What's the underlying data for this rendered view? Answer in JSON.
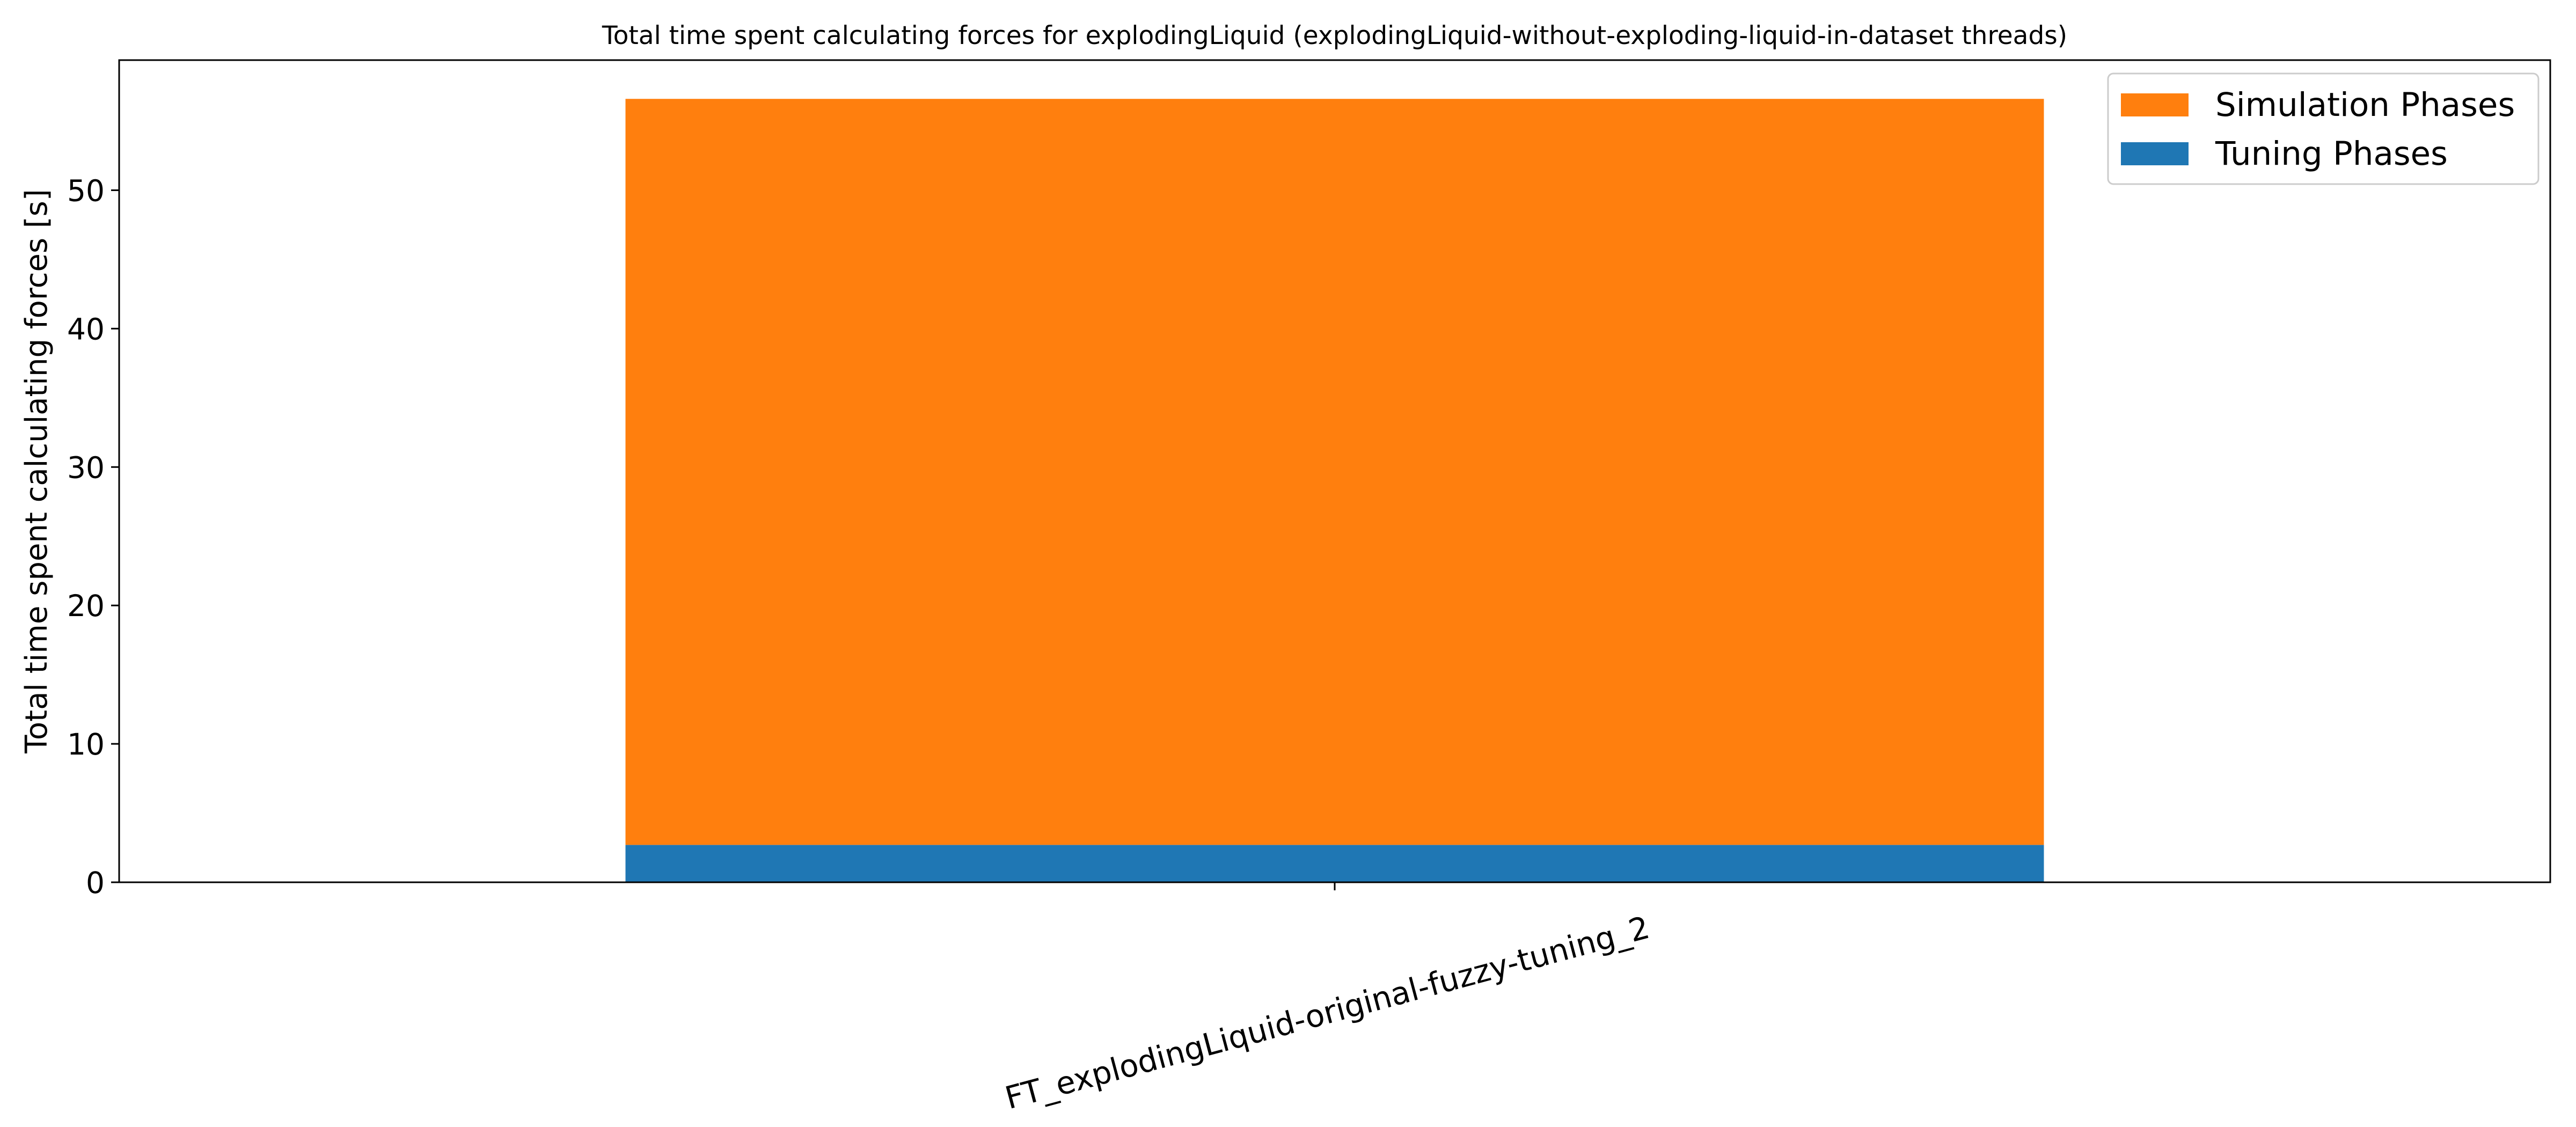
{
  "chart_data": {
    "type": "bar",
    "stacked": true,
    "title": "Total time spent calculating forces for explodingLiquid (explodingLiquid-without-exploding-liquid-in-dataset threads)",
    "xlabel": "",
    "ylabel": "Total time spent calculating forces [s]",
    "categories": [
      "FT_explodingLiquid-original-fuzzy-tuning_2"
    ],
    "series": [
      {
        "name": "Tuning Phases",
        "values": [
          2.7
        ],
        "color": "#1f77b4"
      },
      {
        "name": "Simulation Phases",
        "values": [
          53.9
        ],
        "color": "#ff7f0e"
      }
    ],
    "ylim": [
      0,
      59.4
    ],
    "yticks": [
      0,
      10,
      20,
      30,
      40,
      50
    ],
    "grid": false,
    "legend": {
      "position": "top-right",
      "entries": [
        "Simulation Phases",
        "Tuning Phases"
      ]
    }
  }
}
